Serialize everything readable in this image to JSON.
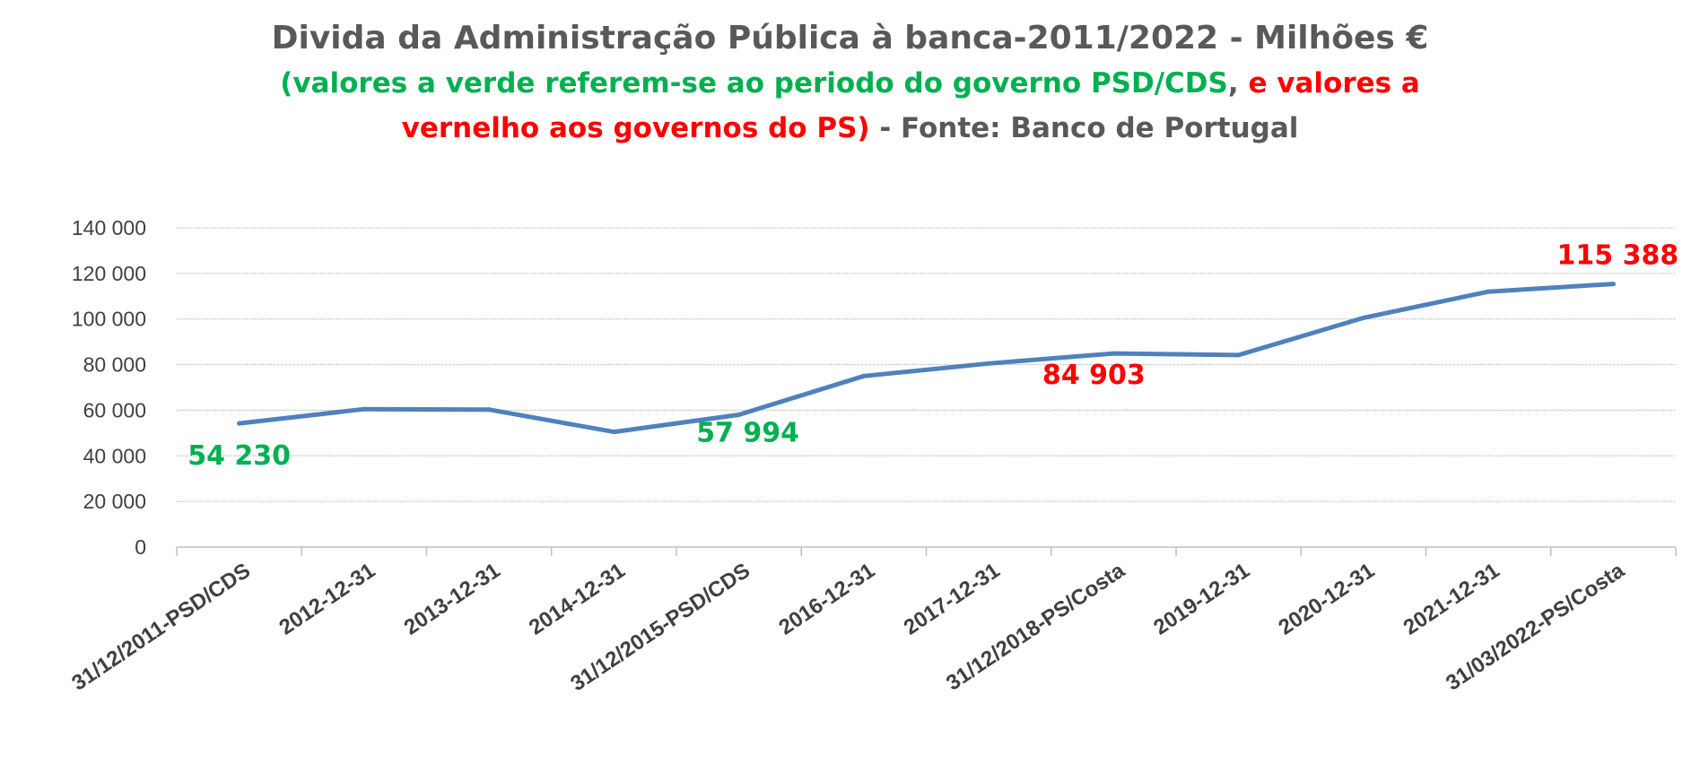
{
  "title": {
    "line1": "Divida da Administração Pública à banca-2011/2022 - Milhões €",
    "line2_green": "(valores a verde referem-se ao periodo do governo PSD/CDS",
    "line2_comma": ",",
    "line2_red": " e  valores a",
    "line3_red": "vernelho aos governos do PS)",
    "line3_gray": " - Fonte: Banco de Portugal"
  },
  "colors": {
    "line": "#4f81bd",
    "green": "#00b050",
    "red": "#ff0000",
    "grid": "#bfbfbf",
    "axis": "#bfbfbf",
    "text": "#404040"
  },
  "chart_data": {
    "type": "line",
    "categories": [
      "31/12/2011-PSD/CDS",
      "2012-12-31",
      "2013-12-31",
      "2014-12-31",
      "31/12/2015-PSD/CDS",
      "2016-12-31",
      "2017-12-31",
      "31/12/2018-PS/Costa",
      "2019-12-31",
      "2020-12-31",
      "2021-12-31",
      "31/03/2022-PS/Costa"
    ],
    "series": [
      {
        "values": [
          54230,
          60500,
          60300,
          50500,
          57994,
          75000,
          80500,
          84903,
          84200,
          100500,
          112000,
          115388
        ]
      }
    ],
    "ylim": [
      0,
      140000
    ],
    "yticks": [
      0,
      20000,
      40000,
      60000,
      80000,
      100000,
      120000,
      140000
    ],
    "ytick_labels": [
      "0",
      "20 000",
      "40 000",
      "60 000",
      "80 000",
      "100 000",
      "120 000",
      "140 000"
    ],
    "grid": true,
    "data_labels": [
      {
        "index": 0,
        "text": "54 230",
        "color": "#00b050"
      },
      {
        "index": 4,
        "text": "57 994",
        "color": "#00b050"
      },
      {
        "index": 7,
        "text": "84 903",
        "color": "#ff0000"
      },
      {
        "index": 11,
        "text": "115 388",
        "color": "#ff0000"
      }
    ]
  }
}
